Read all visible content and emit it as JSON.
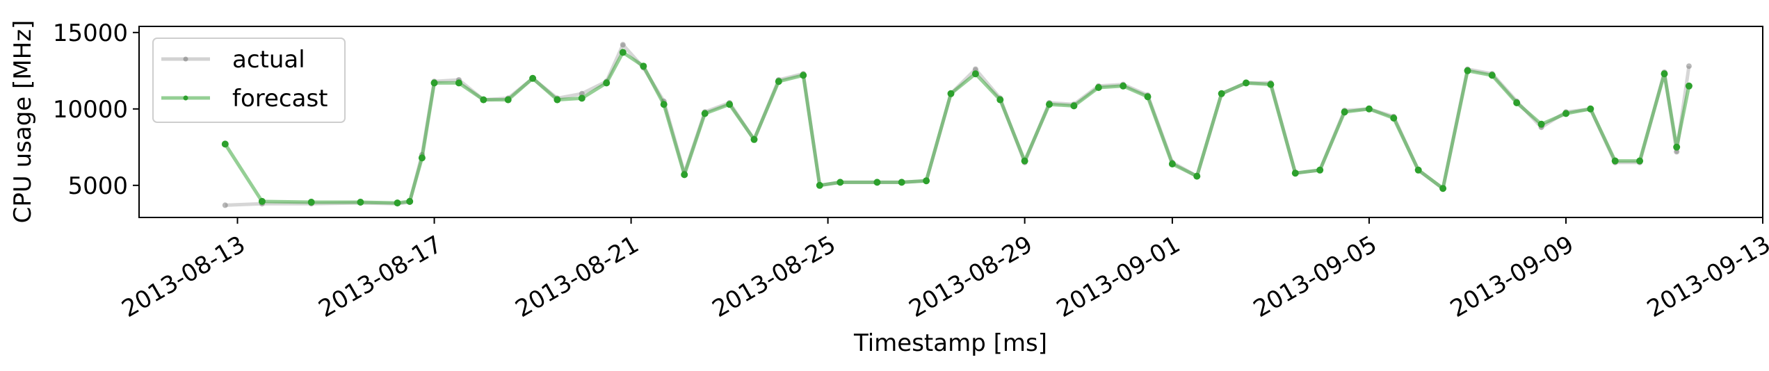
{
  "chart_data": {
    "type": "line",
    "title": "",
    "xlabel": "Timestamp [ms]",
    "ylabel": "CPU usage [MHz]",
    "xlim": [
      "2013-08-11T00:00:00",
      "2013-09-13T00:00:00"
    ],
    "ylim": [
      2900,
      15400
    ],
    "x_ticks": [
      "2013-08-13",
      "2013-08-17",
      "2013-08-21",
      "2013-08-25",
      "2013-08-29",
      "2013-09-01",
      "2013-09-05",
      "2013-09-09",
      "2013-09-13"
    ],
    "y_ticks": [
      5000,
      10000,
      15000
    ],
    "y_tick_labels": [
      "5000",
      "10000",
      "15000"
    ],
    "grid": false,
    "legend": {
      "placement": "top-left",
      "entries": [
        "actual",
        "forecast"
      ]
    },
    "colors": {
      "actual": "#7f7f7f",
      "forecast": "#2ca02c"
    },
    "series": [
      {
        "name": "actual",
        "style": "gray line with dots, semi-transparent",
        "x": [
          "2013-08-12T18:00:00",
          "2013-08-13T12:00:00",
          "2013-08-14T12:00:00",
          "2013-08-15T12:00:00",
          "2013-08-16T06:00:00",
          "2013-08-16T12:00:00",
          "2013-08-16T18:00:00",
          "2013-08-17T00:00:00",
          "2013-08-17T12:00:00",
          "2013-08-18T00:00:00",
          "2013-08-18T12:00:00",
          "2013-08-19T00:00:00",
          "2013-08-19T12:00:00",
          "2013-08-20T00:00:00",
          "2013-08-20T12:00:00",
          "2013-08-20T20:00:00",
          "2013-08-21T06:00:00",
          "2013-08-21T16:00:00",
          "2013-08-22T02:00:00",
          "2013-08-22T12:00:00",
          "2013-08-23T00:00:00",
          "2013-08-23T12:00:00",
          "2013-08-24T00:00:00",
          "2013-08-24T12:00:00",
          "2013-08-24T20:00:00",
          "2013-08-25T06:00:00",
          "2013-08-26T00:00:00",
          "2013-08-26T12:00:00",
          "2013-08-27T00:00:00",
          "2013-08-27T12:00:00",
          "2013-08-28T00:00:00",
          "2013-08-28T12:00:00",
          "2013-08-29T00:00:00",
          "2013-08-29T12:00:00",
          "2013-08-30T00:00:00",
          "2013-08-30T12:00:00",
          "2013-08-31T00:00:00",
          "2013-08-31T12:00:00",
          "2013-09-01T00:00:00",
          "2013-09-01T12:00:00",
          "2013-09-02T00:00:00",
          "2013-09-02T12:00:00",
          "2013-09-03T00:00:00",
          "2013-09-03T12:00:00",
          "2013-09-04T00:00:00",
          "2013-09-04T12:00:00",
          "2013-09-05T00:00:00",
          "2013-09-05T12:00:00",
          "2013-09-06T00:00:00",
          "2013-09-06T12:00:00",
          "2013-09-07T00:00:00",
          "2013-09-07T12:00:00",
          "2013-09-08T00:00:00",
          "2013-09-08T12:00:00",
          "2013-09-09T00:00:00",
          "2013-09-09T12:00:00",
          "2013-09-10T00:00:00",
          "2013-09-10T12:00:00",
          "2013-09-11T00:00:00",
          "2013-09-11T06:00:00",
          "2013-09-11T12:00:00"
        ],
        "values": [
          3700,
          3800,
          3800,
          3850,
          3800,
          3900,
          7000,
          11800,
          11900,
          10600,
          10700,
          12000,
          10700,
          11000,
          11800,
          14200,
          12700,
          10500,
          5800,
          9800,
          10400,
          8000,
          11900,
          12300,
          5000,
          5200,
          5200,
          5200,
          5300,
          11000,
          12600,
          10700,
          6500,
          10400,
          10300,
          11500,
          11600,
          10900,
          6500,
          5600,
          11000,
          11700,
          11700,
          5800,
          6000,
          9900,
          10000,
          9500,
          6000,
          4800,
          12600,
          12300,
          10500,
          8800,
          9800,
          10000,
          6500,
          6500,
          12400,
          7200,
          12800
        ]
      },
      {
        "name": "forecast",
        "style": "green line with dots",
        "x": [
          "2013-08-12T18:00:00",
          "2013-08-13T12:00:00",
          "2013-08-14T12:00:00",
          "2013-08-15T12:00:00",
          "2013-08-16T06:00:00",
          "2013-08-16T12:00:00",
          "2013-08-16T18:00:00",
          "2013-08-17T00:00:00",
          "2013-08-17T12:00:00",
          "2013-08-18T00:00:00",
          "2013-08-18T12:00:00",
          "2013-08-19T00:00:00",
          "2013-08-19T12:00:00",
          "2013-08-20T00:00:00",
          "2013-08-20T12:00:00",
          "2013-08-20T20:00:00",
          "2013-08-21T06:00:00",
          "2013-08-21T16:00:00",
          "2013-08-22T02:00:00",
          "2013-08-22T12:00:00",
          "2013-08-23T00:00:00",
          "2013-08-23T12:00:00",
          "2013-08-24T00:00:00",
          "2013-08-24T12:00:00",
          "2013-08-24T20:00:00",
          "2013-08-25T06:00:00",
          "2013-08-26T00:00:00",
          "2013-08-26T12:00:00",
          "2013-08-27T00:00:00",
          "2013-08-27T12:00:00",
          "2013-08-28T00:00:00",
          "2013-08-28T12:00:00",
          "2013-08-29T00:00:00",
          "2013-08-29T12:00:00",
          "2013-08-30T00:00:00",
          "2013-08-30T12:00:00",
          "2013-08-31T00:00:00",
          "2013-08-31T12:00:00",
          "2013-09-01T00:00:00",
          "2013-09-01T12:00:00",
          "2013-09-02T00:00:00",
          "2013-09-02T12:00:00",
          "2013-09-03T00:00:00",
          "2013-09-03T12:00:00",
          "2013-09-04T00:00:00",
          "2013-09-04T12:00:00",
          "2013-09-05T00:00:00",
          "2013-09-05T12:00:00",
          "2013-09-06T00:00:00",
          "2013-09-06T12:00:00",
          "2013-09-07T00:00:00",
          "2013-09-07T12:00:00",
          "2013-09-08T00:00:00",
          "2013-09-08T12:00:00",
          "2013-09-09T00:00:00",
          "2013-09-09T12:00:00",
          "2013-09-10T00:00:00",
          "2013-09-10T12:00:00",
          "2013-09-11T00:00:00",
          "2013-09-11T06:00:00",
          "2013-09-11T12:00:00"
        ],
        "values": [
          7700,
          3950,
          3900,
          3900,
          3850,
          3950,
          6800,
          11700,
          11700,
          10600,
          10600,
          12000,
          10600,
          10700,
          11700,
          13700,
          12800,
          10300,
          5700,
          9700,
          10300,
          8000,
          11800,
          12200,
          5000,
          5200,
          5200,
          5200,
          5300,
          11000,
          12300,
          10600,
          6600,
          10300,
          10200,
          11400,
          11500,
          10800,
          6400,
          5600,
          11000,
          11700,
          11600,
          5800,
          6000,
          9800,
          10000,
          9400,
          6000,
          4800,
          12500,
          12200,
          10400,
          9000,
          9700,
          10000,
          6600,
          6600,
          12300,
          7500,
          11500
        ]
      }
    ]
  }
}
